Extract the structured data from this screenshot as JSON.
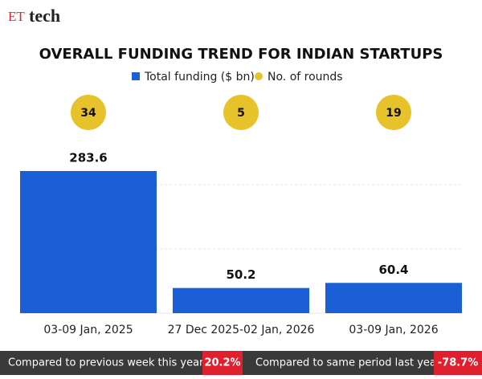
{
  "logo": {
    "brand": "ET",
    "name": "tech"
  },
  "chart_data": {
    "type": "bar",
    "title": "OVERALL FUNDING TREND FOR INDIAN STARTUPS",
    "categories": [
      "03-09 Jan, 2025",
      "27 Dec 2025-02 Jan, 2026",
      "03-09 Jan, 2026"
    ],
    "series": [
      {
        "name": "Total funding ($ bn)",
        "color": "#1a5fd6",
        "values": [
          283.6,
          50.2,
          60.4
        ]
      },
      {
        "name": "No. of rounds",
        "color": "#e8c22a",
        "values": [
          34,
          5,
          19
        ]
      }
    ]
  },
  "footer": {
    "items": [
      {
        "label": "Compared to previous week this year",
        "value": "20.2%"
      },
      {
        "label": "Compared to same period last year",
        "value": "-78.7%"
      }
    ]
  }
}
